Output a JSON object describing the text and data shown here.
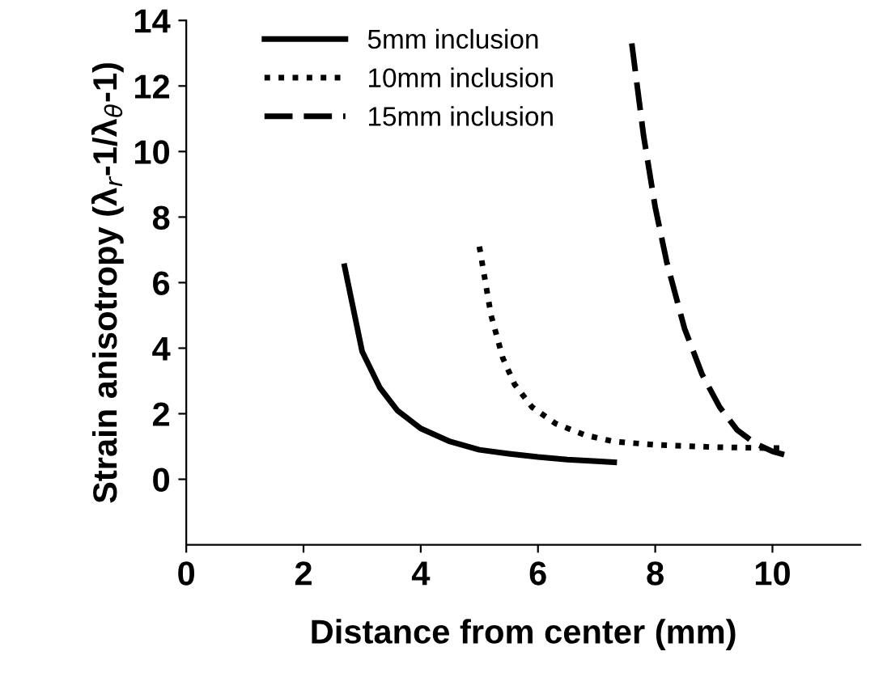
{
  "chart_data": {
    "type": "line",
    "xlabel": "Distance from center (mm)",
    "ylabel": "Strain anisotropy (λ$_{r}$-1/λ$_{θ}$-1)",
    "xlim": [
      0,
      11.5
    ],
    "xticks": [
      0,
      2,
      4,
      6,
      8,
      10
    ],
    "ylim": [
      -2,
      14
    ],
    "yticks": [
      0,
      2,
      4,
      6,
      8,
      10,
      12,
      14
    ],
    "grid": false,
    "legend": "top left",
    "marker": "none",
    "series": [
      {
        "name": "5mm inclusion",
        "color": "#000000",
        "line_style": "solid",
        "x": [
          2.7,
          3.0,
          3.3,
          3.6,
          4.0,
          4.5,
          5.0,
          5.5,
          6.0,
          6.5,
          7.0,
          7.3
        ],
        "values": [
          6.5,
          3.9,
          2.8,
          2.1,
          1.55,
          1.15,
          0.9,
          0.78,
          0.68,
          0.6,
          0.55,
          0.52
        ]
      },
      {
        "name": "10mm inclusion",
        "color": "#000000",
        "line_style": "dotted",
        "x": [
          5.0,
          5.2,
          5.4,
          5.6,
          5.9,
          6.3,
          6.8,
          7.3,
          8.0,
          9.0,
          10.0,
          10.2
        ],
        "values": [
          7.1,
          5.0,
          3.7,
          2.9,
          2.2,
          1.7,
          1.35,
          1.15,
          1.05,
          0.98,
          0.95,
          0.95
        ]
      },
      {
        "name": "15mm inclusion",
        "color": "#000000",
        "line_style": "dashed",
        "x": [
          7.6,
          7.8,
          8.0,
          8.2,
          8.5,
          8.8,
          9.1,
          9.4,
          9.7,
          10.0,
          10.2
        ],
        "values": [
          13.3,
          10.5,
          8.3,
          6.6,
          4.6,
          3.2,
          2.2,
          1.5,
          1.1,
          0.85,
          0.75
        ]
      }
    ]
  }
}
